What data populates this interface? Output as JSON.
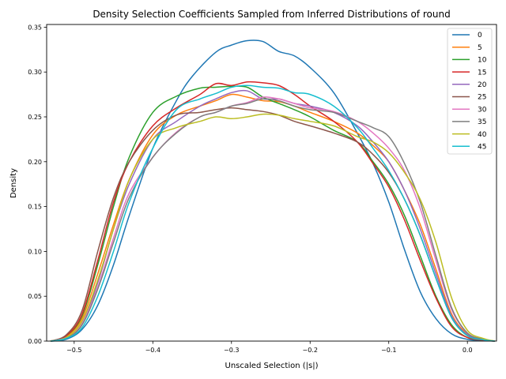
{
  "chart_data": {
    "type": "line",
    "title": "Density Selection Coefficients Sampled from Inferred Distributions of round",
    "xlabel": "Unscaled Selection (|s|)",
    "ylabel": "Density",
    "xlim": [
      -0.535,
      0.037
    ],
    "ylim": [
      0,
      0.353
    ],
    "xticks": [
      -0.5,
      -0.4,
      -0.3,
      -0.2,
      -0.1,
      0.0
    ],
    "xtick_labels": [
      "−0.5",
      "−0.4",
      "−0.3",
      "−0.2",
      "−0.1",
      "0.0"
    ],
    "yticks": [
      0.0,
      0.05,
      0.1,
      0.15,
      0.2,
      0.25,
      0.3,
      0.35
    ],
    "ytick_labels": [
      "0.00",
      "0.05",
      "0.10",
      "0.15",
      "0.20",
      "0.25",
      "0.30",
      "0.35"
    ],
    "legend_position": "top-right",
    "grid": false,
    "series": [
      {
        "name": "0",
        "color": "#1f77b4",
        "x": [
          -0.53,
          -0.51,
          -0.49,
          -0.47,
          -0.45,
          -0.43,
          -0.4,
          -0.37,
          -0.35,
          -0.32,
          -0.3,
          -0.28,
          -0.26,
          -0.24,
          -0.22,
          -0.2,
          -0.17,
          -0.14,
          -0.12,
          -0.1,
          -0.08,
          -0.06,
          -0.04,
          -0.02,
          0.0,
          0.02,
          0.035
        ],
        "y": [
          0.0,
          0.002,
          0.013,
          0.04,
          0.085,
          0.14,
          0.215,
          0.268,
          0.295,
          0.322,
          0.33,
          0.335,
          0.334,
          0.323,
          0.318,
          0.305,
          0.277,
          0.232,
          0.198,
          0.155,
          0.102,
          0.055,
          0.025,
          0.008,
          0.002,
          0.0005,
          0.0
        ]
      },
      {
        "name": "5",
        "color": "#ff7f0e",
        "x": [
          -0.53,
          -0.51,
          -0.49,
          -0.47,
          -0.45,
          -0.43,
          -0.4,
          -0.37,
          -0.34,
          -0.32,
          -0.3,
          -0.28,
          -0.26,
          -0.24,
          -0.22,
          -0.2,
          -0.17,
          -0.14,
          -0.12,
          -0.1,
          -0.08,
          -0.06,
          -0.04,
          -0.02,
          0.0,
          0.02,
          0.035
        ],
        "y": [
          0.0,
          0.005,
          0.025,
          0.075,
          0.13,
          0.18,
          0.23,
          0.252,
          0.262,
          0.268,
          0.275,
          0.272,
          0.268,
          0.267,
          0.262,
          0.255,
          0.245,
          0.232,
          0.218,
          0.2,
          0.168,
          0.13,
          0.08,
          0.03,
          0.008,
          0.002,
          0.0
        ]
      },
      {
        "name": "10",
        "color": "#2ca02c",
        "x": [
          -0.53,
          -0.51,
          -0.49,
          -0.47,
          -0.45,
          -0.43,
          -0.4,
          -0.37,
          -0.34,
          -0.32,
          -0.3,
          -0.28,
          -0.26,
          -0.24,
          -0.22,
          -0.2,
          -0.17,
          -0.14,
          -0.12,
          -0.1,
          -0.08,
          -0.06,
          -0.04,
          -0.02,
          0.0,
          0.02,
          0.035
        ],
        "y": [
          0.0,
          0.006,
          0.028,
          0.085,
          0.15,
          0.205,
          0.255,
          0.273,
          0.282,
          0.283,
          0.284,
          0.283,
          0.272,
          0.265,
          0.258,
          0.25,
          0.235,
          0.222,
          0.2,
          0.175,
          0.14,
          0.095,
          0.05,
          0.018,
          0.004,
          0.001,
          0.0
        ]
      },
      {
        "name": "15",
        "color": "#d62728",
        "x": [
          -0.53,
          -0.51,
          -0.49,
          -0.47,
          -0.45,
          -0.43,
          -0.4,
          -0.37,
          -0.34,
          -0.32,
          -0.3,
          -0.28,
          -0.26,
          -0.24,
          -0.22,
          -0.2,
          -0.17,
          -0.14,
          -0.12,
          -0.1,
          -0.08,
          -0.06,
          -0.04,
          -0.02,
          0.0,
          0.02,
          0.035
        ],
        "y": [
          0.0,
          0.006,
          0.03,
          0.09,
          0.155,
          0.2,
          0.24,
          0.26,
          0.275,
          0.287,
          0.285,
          0.289,
          0.288,
          0.285,
          0.275,
          0.262,
          0.245,
          0.222,
          0.198,
          0.172,
          0.135,
          0.09,
          0.048,
          0.016,
          0.004,
          0.001,
          0.0
        ]
      },
      {
        "name": "20",
        "color": "#9467bd",
        "x": [
          -0.53,
          -0.51,
          -0.49,
          -0.47,
          -0.45,
          -0.43,
          -0.4,
          -0.37,
          -0.34,
          -0.32,
          -0.3,
          -0.28,
          -0.26,
          -0.24,
          -0.22,
          -0.2,
          -0.17,
          -0.14,
          -0.12,
          -0.1,
          -0.08,
          -0.06,
          -0.04,
          -0.02,
          0.0,
          0.02,
          0.035
        ],
        "y": [
          0.0,
          0.004,
          0.02,
          0.065,
          0.125,
          0.175,
          0.225,
          0.245,
          0.262,
          0.27,
          0.277,
          0.279,
          0.27,
          0.27,
          0.265,
          0.262,
          0.255,
          0.24,
          0.222,
          0.2,
          0.168,
          0.125,
          0.075,
          0.028,
          0.007,
          0.0015,
          0.0
        ]
      },
      {
        "name": "25",
        "color": "#8c564b",
        "x": [
          -0.53,
          -0.51,
          -0.49,
          -0.47,
          -0.45,
          -0.43,
          -0.4,
          -0.37,
          -0.34,
          -0.32,
          -0.3,
          -0.28,
          -0.26,
          -0.24,
          -0.22,
          -0.2,
          -0.17,
          -0.14,
          -0.12,
          -0.1,
          -0.08,
          -0.06,
          -0.04,
          -0.02,
          0.0,
          0.02,
          0.035
        ],
        "y": [
          0.0,
          0.007,
          0.034,
          0.1,
          0.16,
          0.2,
          0.235,
          0.252,
          0.255,
          0.258,
          0.26,
          0.258,
          0.256,
          0.252,
          0.245,
          0.24,
          0.232,
          0.222,
          0.208,
          0.188,
          0.158,
          0.118,
          0.07,
          0.026,
          0.006,
          0.0015,
          0.0
        ]
      },
      {
        "name": "30",
        "color": "#e377c2",
        "x": [
          -0.53,
          -0.51,
          -0.49,
          -0.47,
          -0.45,
          -0.43,
          -0.4,
          -0.37,
          -0.34,
          -0.32,
          -0.3,
          -0.28,
          -0.26,
          -0.24,
          -0.22,
          -0.2,
          -0.17,
          -0.14,
          -0.12,
          -0.1,
          -0.08,
          -0.06,
          -0.04,
          -0.02,
          0.0,
          0.02,
          0.035
        ],
        "y": [
          0.0,
          0.004,
          0.02,
          0.06,
          0.115,
          0.165,
          0.205,
          0.233,
          0.25,
          0.255,
          0.262,
          0.266,
          0.272,
          0.27,
          0.265,
          0.26,
          0.256,
          0.245,
          0.232,
          0.215,
          0.19,
          0.148,
          0.09,
          0.035,
          0.009,
          0.002,
          0.0
        ]
      },
      {
        "name": "35",
        "color": "#7f7f7f",
        "x": [
          -0.53,
          -0.51,
          -0.49,
          -0.47,
          -0.45,
          -0.43,
          -0.4,
          -0.37,
          -0.34,
          -0.32,
          -0.3,
          -0.28,
          -0.26,
          -0.24,
          -0.22,
          -0.2,
          -0.17,
          -0.14,
          -0.12,
          -0.1,
          -0.08,
          -0.06,
          -0.04,
          -0.02,
          0.0,
          0.02,
          0.035
        ],
        "y": [
          0.0,
          0.003,
          0.018,
          0.058,
          0.11,
          0.16,
          0.205,
          0.232,
          0.25,
          0.255,
          0.262,
          0.265,
          0.27,
          0.268,
          0.262,
          0.258,
          0.255,
          0.245,
          0.238,
          0.228,
          0.198,
          0.155,
          0.095,
          0.037,
          0.009,
          0.002,
          0.0
        ]
      },
      {
        "name": "40",
        "color": "#bcbd22",
        "x": [
          -0.53,
          -0.51,
          -0.49,
          -0.47,
          -0.45,
          -0.43,
          -0.4,
          -0.37,
          -0.34,
          -0.32,
          -0.3,
          -0.28,
          -0.26,
          -0.24,
          -0.22,
          -0.2,
          -0.17,
          -0.14,
          -0.12,
          -0.1,
          -0.08,
          -0.06,
          -0.04,
          -0.02,
          0.0,
          0.02,
          0.035
        ],
        "y": [
          0.0,
          0.004,
          0.022,
          0.068,
          0.125,
          0.18,
          0.225,
          0.238,
          0.245,
          0.25,
          0.248,
          0.25,
          0.253,
          0.252,
          0.248,
          0.245,
          0.24,
          0.228,
          0.222,
          0.21,
          0.188,
          0.158,
          0.11,
          0.048,
          0.012,
          0.003,
          0.0
        ]
      },
      {
        "name": "45",
        "color": "#17becf",
        "x": [
          -0.53,
          -0.51,
          -0.49,
          -0.47,
          -0.45,
          -0.43,
          -0.4,
          -0.37,
          -0.34,
          -0.32,
          -0.3,
          -0.28,
          -0.26,
          -0.24,
          -0.22,
          -0.2,
          -0.17,
          -0.14,
          -0.12,
          -0.1,
          -0.08,
          -0.06,
          -0.04,
          -0.02,
          0.0,
          0.02,
          0.035
        ],
        "y": [
          0.0,
          0.003,
          0.015,
          0.05,
          0.1,
          0.155,
          0.215,
          0.258,
          0.27,
          0.276,
          0.283,
          0.285,
          0.283,
          0.282,
          0.277,
          0.275,
          0.262,
          0.238,
          0.215,
          0.19,
          0.158,
          0.118,
          0.07,
          0.026,
          0.006,
          0.0015,
          0.0
        ]
      }
    ]
  }
}
